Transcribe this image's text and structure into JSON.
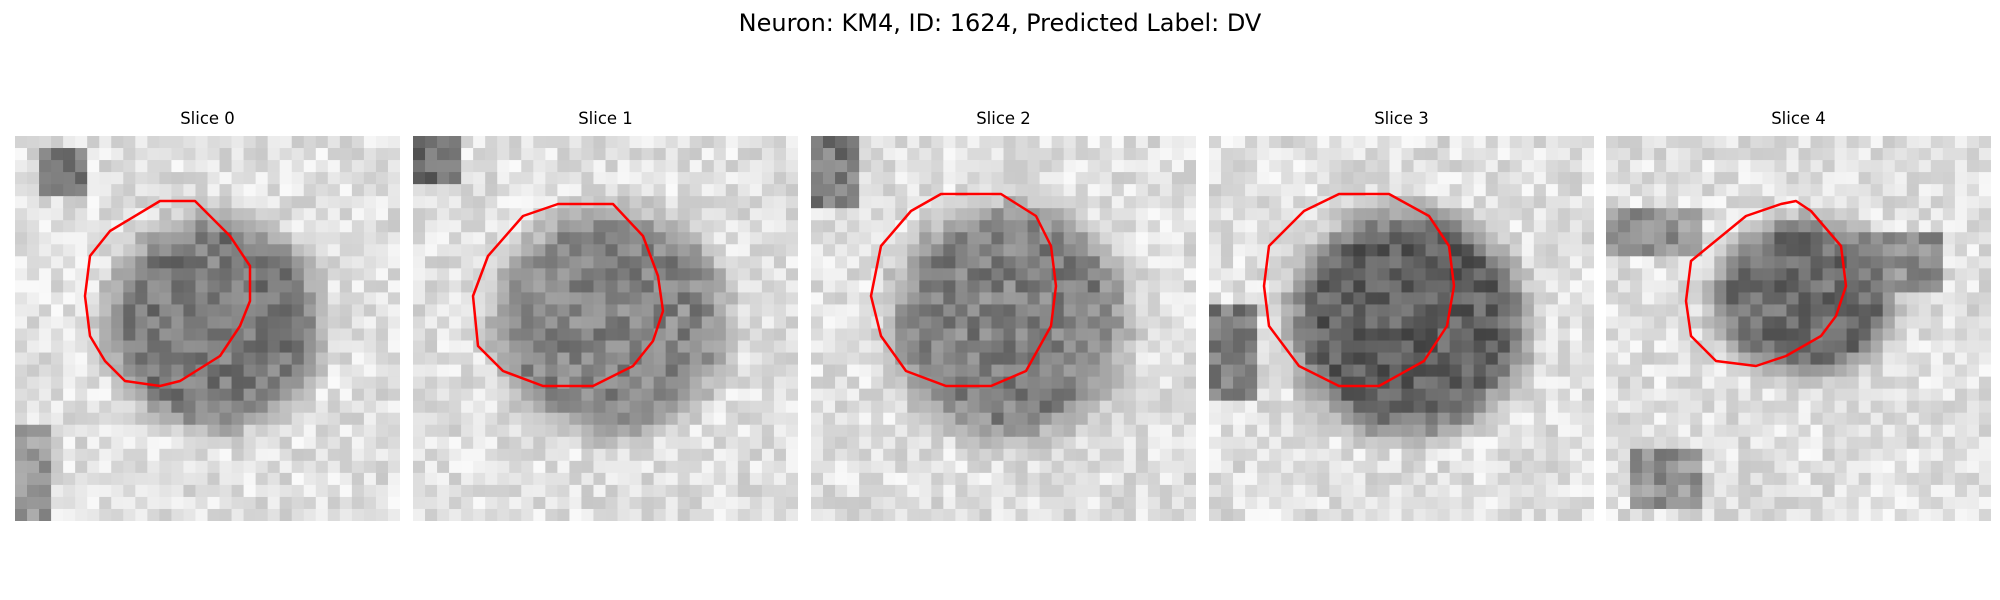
{
  "figure": {
    "title": "Neuron: KM4, ID: 1624, Predicted Label: DV"
  },
  "panels": [
    {
      "title": "Slice 0"
    },
    {
      "title": "Slice 1"
    },
    {
      "title": "Slice 2"
    },
    {
      "title": "Slice 3"
    },
    {
      "title": "Slice 4"
    }
  ],
  "colors": {
    "contour": "#ff0000",
    "background": "#ffffff"
  }
}
